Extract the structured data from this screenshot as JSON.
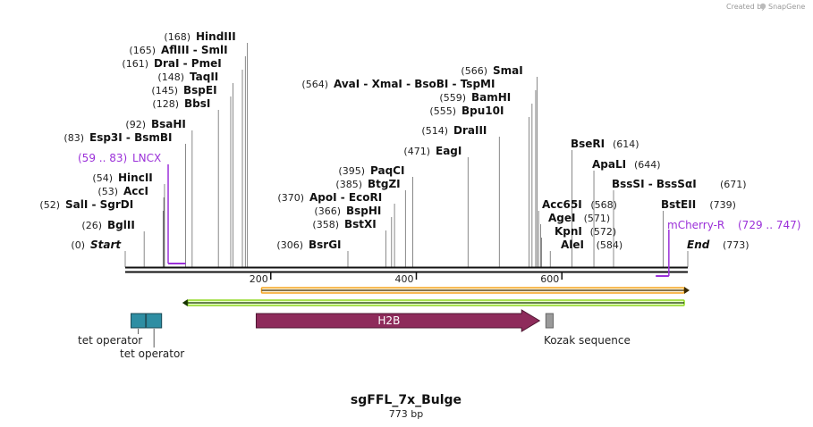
{
  "credit": {
    "text": "Created by",
    "brand": "SnapGene"
  },
  "map": {
    "title": "sgFFL_7x_Bulge",
    "length_label": "773 bp",
    "total_bp": 773
  },
  "ticks": [
    {
      "label": "200",
      "bp": 200
    },
    {
      "label": "400",
      "bp": 400
    },
    {
      "label": "600",
      "bp": 600
    }
  ],
  "sites": [
    {
      "name": "HindIII",
      "pos_label": "(168)",
      "bp": 168
    },
    {
      "name": "AflIII  - SmlI",
      "pos_label": "(165)",
      "bp": 165
    },
    {
      "name": "DraI  - PmeI",
      "pos_label": "(161)",
      "bp": 161
    },
    {
      "name": "TaqII",
      "pos_label": "(148)",
      "bp": 148
    },
    {
      "name": "BspEI",
      "pos_label": "(145)",
      "bp": 145
    },
    {
      "name": "BbsI",
      "pos_label": "(128)",
      "bp": 128
    },
    {
      "name": "BsaHI",
      "pos_label": "(92)",
      "bp": 92
    },
    {
      "name": "Esp3I  - BsmBI",
      "pos_label": "(83)",
      "bp": 83
    },
    {
      "name": "HincII",
      "pos_label": "(54)",
      "bp": 54
    },
    {
      "name": "AccI",
      "pos_label": "(53)",
      "bp": 53
    },
    {
      "name": "SalI  - SgrDI",
      "pos_label": "(52)",
      "bp": 52
    },
    {
      "name": "BglII",
      "pos_label": "(26)",
      "bp": 26
    },
    {
      "name": "SmaI",
      "pos_label": "(566)",
      "bp": 566
    },
    {
      "name": "AvaI  - XmaI  - BsoBI  - TspMI",
      "pos_label": "(564)",
      "bp": 564
    },
    {
      "name": "BamHI",
      "pos_label": "(559)",
      "bp": 559
    },
    {
      "name": "Bpu10I",
      "pos_label": "(555)",
      "bp": 555
    },
    {
      "name": "DraIII",
      "pos_label": "(514)",
      "bp": 514
    },
    {
      "name": "EagI",
      "pos_label": "(471)",
      "bp": 471
    },
    {
      "name": "PaqCI",
      "pos_label": "(395)",
      "bp": 395
    },
    {
      "name": "BtgZI",
      "pos_label": "(385)",
      "bp": 385
    },
    {
      "name": "ApoI  - EcoRI",
      "pos_label": "(370)",
      "bp": 370
    },
    {
      "name": "BspHI",
      "pos_label": "(366)",
      "bp": 366
    },
    {
      "name": "BstXI",
      "pos_label": "(358)",
      "bp": 358
    },
    {
      "name": "BsrGI",
      "pos_label": "(306)",
      "bp": 306
    },
    {
      "name": "BseRI",
      "pos_label": "(614)",
      "bp": 614
    },
    {
      "name": "ApaLI",
      "pos_label": "(644)",
      "bp": 644
    },
    {
      "name": "BssSI  - BssSαI",
      "pos_label": "(671)",
      "bp": 671
    },
    {
      "name": "Acc65I",
      "pos_label": "(568)",
      "bp": 568
    },
    {
      "name": "AgeI",
      "pos_label": "(571)",
      "bp": 571
    },
    {
      "name": "KpnI",
      "pos_label": "(572)",
      "bp": 572
    },
    {
      "name": "AleI",
      "pos_label": "(584)",
      "bp": 584
    },
    {
      "name": "BstEII",
      "pos_label": "(739)",
      "bp": 739
    }
  ],
  "ends": [
    {
      "name": "Start",
      "pos_label": "(0)",
      "bp": 0
    },
    {
      "name": "End",
      "pos_label": "(773)",
      "bp": 773
    }
  ],
  "primers": [
    {
      "name": "LNCX",
      "range_label": "(59 .. 83)",
      "start_bp": 59,
      "end_bp": 83,
      "direction": "forward",
      "color": "#9b30d9"
    },
    {
      "name": "mCherry-R",
      "range_label": "(729 .. 747)",
      "start_bp": 729,
      "end_bp": 747,
      "direction": "reverse",
      "color": "#9b30d9"
    }
  ],
  "orfs": [
    {
      "name": "ORF forward",
      "start_bp": 180,
      "end_bp": 773,
      "direction": "forward",
      "color": "#f5a623"
    },
    {
      "name": "ORF reverse",
      "start_bp": 76,
      "end_bp": 773,
      "direction": "reverse",
      "color": "#8ed81f"
    }
  ],
  "features": [
    {
      "name": "tet operator",
      "kind": "box",
      "start_bp": 8,
      "end_bp": 28,
      "color": "#2e8ea3"
    },
    {
      "name": "tet operator",
      "kind": "box",
      "start_bp": 29,
      "end_bp": 50,
      "color": "#2e8ea3"
    },
    {
      "name": "H2B",
      "kind": "arrow",
      "start_bp": 180,
      "end_bp": 557,
      "color": "#8e2b5b"
    },
    {
      "name": "Kozak sequence",
      "kind": "box",
      "start_bp": 578,
      "end_bp": 588,
      "color": "#9a9a9a"
    }
  ]
}
